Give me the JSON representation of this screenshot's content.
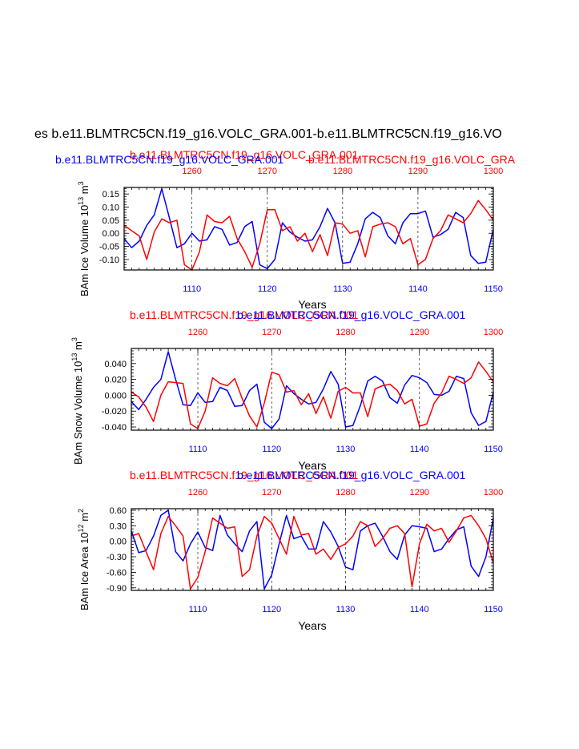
{
  "page": {
    "main_title": "es b.e11.BLMTRC5CN.f19_g16.VOLC_GRA.001-b.e11.BLMTRC5CN.f19_g16.VO"
  },
  "colors": {
    "case1": "#0000ff",
    "case2": "#ff0000",
    "frame": "#000000",
    "grid": "#000000"
  },
  "chart_data": [
    {
      "type": "line",
      "id": "ice-volume",
      "title_blue": "b.e11.BLMTRC5CN.f19_g16.VOLC_GRA.001",
      "title_red_a": "b.e11.BLMTRC5CN.f19_g16.VOLC_GRA.001",
      "title_red_b": "b.e11.BLMTRC5CN.f19_g16.VOLC_GRA",
      "ylabel": "BAm Ice Volume 10",
      "ylabel_exp": "13",
      "ylabel_unit": "m",
      "ylabel_unit_exp": "3",
      "xlabel": "Years",
      "ylim": [
        -0.14,
        0.175
      ],
      "yticks": [
        -0.1,
        -0.05,
        0.0,
        0.05,
        0.1,
        0.15
      ],
      "ytick_labels": [
        "-0.10",
        "-0.05",
        "0.00",
        "0.05",
        "0.10",
        "0.15"
      ],
      "x_bottom": {
        "range": [
          1101,
          1150
        ],
        "ticks": [
          1110,
          1120,
          1130,
          1140,
          1150
        ],
        "labels": [
          "1110",
          "1120",
          "1130",
          "1140",
          "1150"
        ]
      },
      "x_top": {
        "range": [
          1251,
          1300
        ],
        "ticks": [
          1260,
          1270,
          1280,
          1290,
          1300
        ],
        "labels": [
          "1260",
          "1270",
          "1280",
          "1290",
          "1300"
        ]
      },
      "series": [
        {
          "name": "b.e11.BLMTRC5CN.f19_g16.VOLC_GRA.001 (1101-1150)",
          "color": "#0000ff",
          "values": [
            -0.02,
            -0.055,
            -0.03,
            0.03,
            0.07,
            0.17,
            0.06,
            -0.055,
            -0.04,
            0.0,
            -0.03,
            -0.025,
            0.025,
            0.015,
            -0.045,
            -0.035,
            0.025,
            0.045,
            -0.12,
            -0.135,
            -0.1,
            0.04,
            0.005,
            -0.015,
            -0.03,
            -0.025,
            0.025,
            0.095,
            0.04,
            -0.115,
            -0.11,
            -0.04,
            0.055,
            0.08,
            0.06,
            -0.01,
            -0.04,
            0.04,
            0.075,
            0.075,
            0.085,
            -0.015,
            -0.005,
            0.015,
            0.08,
            0.06,
            -0.085,
            -0.115,
            -0.11,
            0.015
          ]
        },
        {
          "name": "b.e11.BLMTRC5CN.f19_g16.VOLC_GRA.001 (1251-1300)",
          "color": "#ff0000",
          "values": [
            0.03,
            0.01,
            -0.01,
            -0.1,
            0.005,
            0.055,
            0.04,
            0.05,
            -0.12,
            -0.14,
            -0.07,
            0.07,
            0.045,
            0.04,
            0.065,
            -0.02,
            -0.07,
            -0.13,
            -0.04,
            0.09,
            0.09,
            0.01,
            0.025,
            -0.03,
            0.0,
            -0.07,
            -0.005,
            -0.085,
            0.04,
            0.035,
            0.0,
            0.01,
            -0.09,
            0.025,
            0.035,
            0.04,
            0.025,
            -0.04,
            -0.02,
            -0.12,
            -0.1,
            -0.02,
            0.01,
            0.07,
            0.055,
            0.04,
            0.075,
            0.125,
            0.09,
            0.05
          ]
        }
      ]
    },
    {
      "type": "line",
      "id": "snow-volume",
      "title_blue": "b.e11.BLMTRC5CN.f19_g16.VOLC_GRA.001",
      "title_red": "b.e11.BLMTRC5CN.f19_g16.VOLC_GRA.001",
      "ylabel": "BAm Snow Volume 10",
      "ylabel_exp": "13",
      "ylabel_unit": "m",
      "ylabel_unit_exp": "3",
      "xlabel": "Years",
      "ylim": [
        -0.044,
        0.059
      ],
      "yticks": [
        -0.04,
        -0.02,
        0.0,
        0.02,
        0.04
      ],
      "ytick_labels": [
        "-0.040",
        "-0.020",
        "0.000",
        "0.020",
        "0.040"
      ],
      "x_bottom": {
        "range": [
          1101,
          1150
        ],
        "ticks": [
          1110,
          1120,
          1130,
          1140,
          1150
        ],
        "labels": [
          "1110",
          "1120",
          "1130",
          "1140",
          "1150"
        ]
      },
      "x_top": {
        "range": [
          1251,
          1300
        ],
        "ticks": [
          1260,
          1270,
          1280,
          1290,
          1300
        ],
        "labels": [
          "1260",
          "1270",
          "1280",
          "1290",
          "1300"
        ]
      },
      "series": [
        {
          "name": "b.e11.BLMTRC5CN.f19_g16.VOLC_GRA.001 (1101-1150)",
          "color": "#0000ff",
          "values": [
            -0.008,
            -0.018,
            -0.005,
            0.01,
            0.02,
            0.055,
            0.02,
            -0.012,
            -0.013,
            0.003,
            -0.009,
            -0.008,
            0.01,
            0.006,
            -0.014,
            -0.013,
            0.006,
            0.014,
            -0.034,
            -0.042,
            -0.03,
            0.012,
            0.002,
            -0.005,
            -0.011,
            -0.009,
            0.008,
            0.03,
            0.014,
            -0.04,
            -0.038,
            -0.013,
            0.018,
            0.024,
            0.018,
            -0.003,
            -0.01,
            0.013,
            0.025,
            0.022,
            0.016,
            0.001,
            0.0,
            0.005,
            0.024,
            0.021,
            -0.022,
            -0.038,
            -0.033,
            0.004
          ]
        },
        {
          "name": "b.e11.BLMTRC5CN.f19_g16.VOLC_GRA.001 (1251-1300)",
          "color": "#ff0000",
          "values": [
            0.004,
            -0.002,
            -0.015,
            -0.033,
            0.0,
            0.017,
            0.016,
            0.015,
            -0.036,
            -0.042,
            -0.02,
            0.022,
            0.015,
            0.012,
            0.021,
            -0.004,
            -0.026,
            -0.04,
            -0.01,
            0.029,
            0.026,
            0.004,
            0.006,
            -0.012,
            0.002,
            -0.023,
            -0.002,
            -0.029,
            0.005,
            0.01,
            0.003,
            0.003,
            -0.027,
            0.008,
            0.012,
            0.014,
            0.006,
            -0.011,
            -0.005,
            -0.039,
            -0.036,
            -0.01,
            0.003,
            0.024,
            0.02,
            0.015,
            0.022,
            0.042,
            0.03,
            0.017
          ]
        }
      ]
    },
    {
      "type": "line",
      "id": "ice-area",
      "title_blue": "b.e11.BLMTRC5CN.f19_g16.VOLC_GRA.001",
      "title_red": "b.e11.BLMTRC5CN.f19_g16.VOLC_GRA.001",
      "ylabel": "BAm Ice Area 10",
      "ylabel_exp": "12",
      "ylabel_unit": "m",
      "ylabel_unit_exp": "2",
      "xlabel": "Years",
      "ylim": [
        -0.95,
        0.63
      ],
      "yticks": [
        -0.9,
        -0.6,
        -0.3,
        0.0,
        0.3,
        0.6
      ],
      "ytick_labels": [
        "-0.90",
        "-0.60",
        "-0.30",
        "0.00",
        "0.30",
        "0.60"
      ],
      "x_bottom": {
        "range": [
          1101,
          1150
        ],
        "ticks": [
          1110,
          1120,
          1130,
          1140,
          1150
        ],
        "labels": [
          "1110",
          "1120",
          "1130",
          "1140",
          "1150"
        ]
      },
      "x_top": {
        "range": [
          1251,
          1300
        ],
        "ticks": [
          1260,
          1270,
          1280,
          1290,
          1300
        ],
        "labels": [
          "1260",
          "1270",
          "1280",
          "1290",
          "1300"
        ]
      },
      "series": [
        {
          "name": "b.e11.BLMTRC5CN.f19_g16.VOLC_GRA.001 (1101-1150)",
          "color": "#0000ff",
          "values": [
            0.2,
            -0.22,
            -0.18,
            0.1,
            0.5,
            0.6,
            -0.2,
            -0.38,
            -0.05,
            0.18,
            -0.12,
            -0.18,
            0.5,
            0.12,
            -0.05,
            -0.2,
            0.2,
            0.38,
            -0.92,
            -0.65,
            -0.05,
            0.5,
            0.05,
            0.1,
            -0.15,
            -0.15,
            0.38,
            0.18,
            -0.1,
            -0.5,
            -0.55,
            0.2,
            0.3,
            0.35,
            0.1,
            -0.2,
            -0.35,
            0.12,
            0.3,
            0.28,
            0.25,
            -0.2,
            -0.15,
            0.05,
            0.22,
            0.28,
            -0.48,
            -0.68,
            -0.3,
            0.45
          ]
        },
        {
          "name": "b.e11.BLMTRC5CN.f19_g16.VOLC_GRA.001 (1251-1300)",
          "color": "#ff0000",
          "values": [
            0.1,
            0.15,
            -0.2,
            -0.55,
            0.15,
            0.48,
            0.3,
            0.1,
            -0.92,
            -0.7,
            -0.2,
            0.45,
            0.35,
            0.25,
            0.28,
            -0.68,
            -0.55,
            0.1,
            0.48,
            0.35,
            0.05,
            -0.25,
            0.48,
            0.12,
            0.15,
            -0.25,
            -0.15,
            -0.35,
            -0.12,
            -0.05,
            0.1,
            0.38,
            0.3,
            -0.1,
            0.05,
            0.25,
            0.3,
            0.15,
            -0.88,
            -0.05,
            0.33,
            0.2,
            0.25,
            -0.02,
            0.2,
            0.45,
            0.5,
            0.3,
            0.05,
            -0.42
          ]
        }
      ]
    }
  ]
}
